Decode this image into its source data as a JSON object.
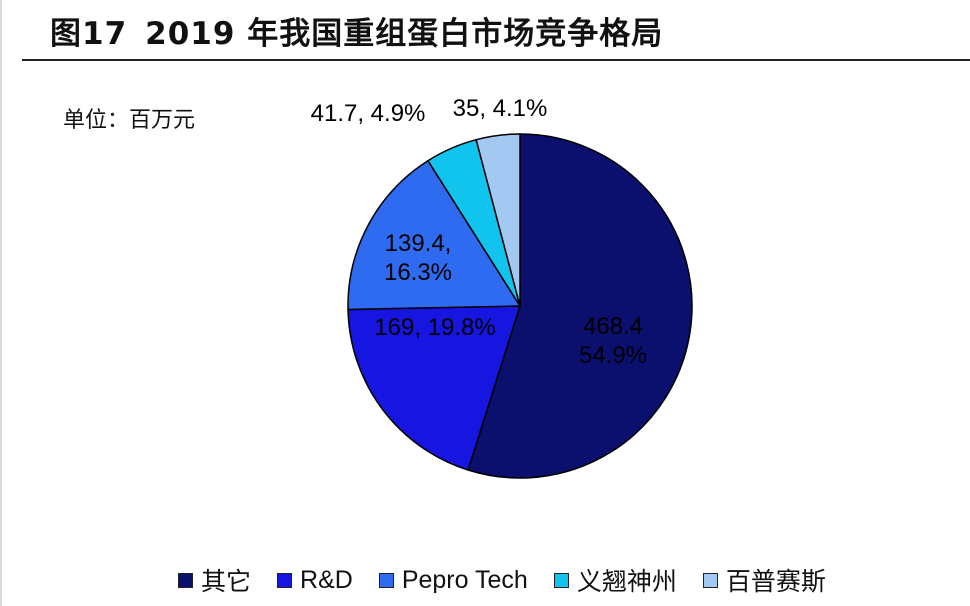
{
  "figure": {
    "number": "图17",
    "title": "2019 年我国重组蛋白市场竞争格局",
    "unit": "单位：百万元"
  },
  "chart_data": {
    "type": "pie",
    "slices": [
      {
        "name": "其它",
        "value": 468.4,
        "percent": 54.9,
        "label": [
          "468.4",
          "54.9%"
        ],
        "color": "#0b0f6e"
      },
      {
        "name": "R&D",
        "value": 169,
        "percent": 19.8,
        "label": [
          "169, 19.8%"
        ],
        "color": "#1616e0"
      },
      {
        "name": "Pepro Tech",
        "value": 139.4,
        "percent": 16.3,
        "label": [
          "139.4,",
          "16.3%"
        ],
        "color": "#2e6bf0"
      },
      {
        "name": "义翘神州",
        "value": 41.7,
        "percent": 4.9,
        "label": [
          "41.7, 4.9%"
        ],
        "color": "#11c4ee"
      },
      {
        "name": "百普赛斯",
        "value": 35,
        "percent": 4.1,
        "label": [
          "35, 4.1%"
        ],
        "color": "#a3c8f2"
      }
    ],
    "legend": {
      "position": "bottom"
    }
  }
}
